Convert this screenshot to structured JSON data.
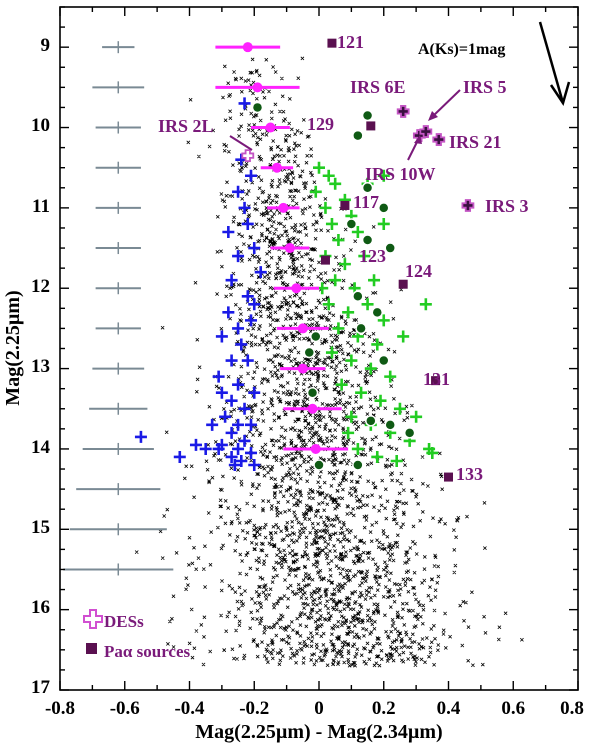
{
  "chart_data": {
    "type": "scatter",
    "xlabel": "Mag(2.25µm) - Mag(2.34µm)",
    "ylabel": "Mag(2.25µm)",
    "xlim": [
      -0.8,
      0.8
    ],
    "ylim": [
      17,
      8.5
    ],
    "x_ticks": [
      "-0.8",
      "-0.6",
      "-0.4",
      "-0.2",
      "0",
      "0.2",
      "0.4",
      "0.6",
      "0.8"
    ],
    "y_ticks": [
      "9",
      "10",
      "11",
      "12",
      "13",
      "14",
      "15",
      "16",
      "17"
    ],
    "error_bars_left": [
      {
        "y": 9.0,
        "xerr": 0.05
      },
      {
        "y": 9.5,
        "xerr": 0.08
      },
      {
        "y": 10.0,
        "xerr": 0.07
      },
      {
        "y": 10.5,
        "xerr": 0.07
      },
      {
        "y": 11.0,
        "xerr": 0.07
      },
      {
        "y": 11.5,
        "xerr": 0.07
      },
      {
        "y": 12.0,
        "xerr": 0.07
      },
      {
        "y": 12.5,
        "xerr": 0.07
      },
      {
        "y": 13.0,
        "xerr": 0.08
      },
      {
        "y": 13.5,
        "xerr": 0.09
      },
      {
        "y": 14.0,
        "xerr": 0.11
      },
      {
        "y": 14.5,
        "xerr": 0.13
      },
      {
        "y": 15.0,
        "xerr": 0.15
      },
      {
        "y": 15.5,
        "xerr": 0.17
      }
    ],
    "ridge_points": [
      {
        "x": -0.22,
        "y": 9.0,
        "xerr": 0.1
      },
      {
        "x": -0.19,
        "y": 9.5,
        "xerr": 0.13
      },
      {
        "x": -0.15,
        "y": 10.0,
        "xerr": 0.06
      },
      {
        "x": -0.13,
        "y": 10.5,
        "xerr": 0.05
      },
      {
        "x": -0.11,
        "y": 11.0,
        "xerr": 0.05
      },
      {
        "x": -0.09,
        "y": 11.5,
        "xerr": 0.06
      },
      {
        "x": -0.07,
        "y": 12.0,
        "xerr": 0.07
      },
      {
        "x": -0.05,
        "y": 12.5,
        "xerr": 0.08
      },
      {
        "x": -0.05,
        "y": 13.0,
        "xerr": 0.07
      },
      {
        "x": -0.02,
        "y": 13.5,
        "xerr": 0.09
      },
      {
        "x": -0.01,
        "y": 14.0,
        "xerr": 0.1
      }
    ],
    "blue_plus": [
      {
        "x": -0.23,
        "y": 9.7
      },
      {
        "x": -0.24,
        "y": 10.4
      },
      {
        "x": -0.21,
        "y": 10.6
      },
      {
        "x": -0.25,
        "y": 10.8
      },
      {
        "x": -0.23,
        "y": 11.0
      },
      {
        "x": -0.28,
        "y": 11.3
      },
      {
        "x": -0.22,
        "y": 11.2
      },
      {
        "x": -0.25,
        "y": 11.6
      },
      {
        "x": -0.2,
        "y": 11.5
      },
      {
        "x": -0.27,
        "y": 11.9
      },
      {
        "x": -0.22,
        "y": 12.1
      },
      {
        "x": -0.28,
        "y": 12.3
      },
      {
        "x": -0.25,
        "y": 12.5
      },
      {
        "x": -0.3,
        "y": 12.6
      },
      {
        "x": -0.21,
        "y": 12.4
      },
      {
        "x": -0.24,
        "y": 12.7
      },
      {
        "x": -0.27,
        "y": 12.9
      },
      {
        "x": -0.31,
        "y": 13.1
      },
      {
        "x": -0.22,
        "y": 12.9
      },
      {
        "x": -0.25,
        "y": 13.2
      },
      {
        "x": -0.2,
        "y": 13.3
      },
      {
        "x": -0.27,
        "y": 13.4
      },
      {
        "x": -0.23,
        "y": 13.5
      },
      {
        "x": -0.29,
        "y": 13.6
      },
      {
        "x": -0.25,
        "y": 13.7
      },
      {
        "x": -0.21,
        "y": 13.7
      },
      {
        "x": -0.27,
        "y": 13.8
      },
      {
        "x": -0.23,
        "y": 13.9
      },
      {
        "x": -0.3,
        "y": 13.95
      },
      {
        "x": -0.25,
        "y": 14.0
      },
      {
        "x": -0.21,
        "y": 14.05
      },
      {
        "x": -0.27,
        "y": 14.1
      },
      {
        "x": -0.24,
        "y": 14.15
      },
      {
        "x": -0.2,
        "y": 14.2
      },
      {
        "x": -0.26,
        "y": 14.2
      },
      {
        "x": -0.31,
        "y": 14.0
      },
      {
        "x": -0.35,
        "y": 14.0
      },
      {
        "x": -0.38,
        "y": 13.95
      },
      {
        "x": -0.43,
        "y": 14.1
      },
      {
        "x": -0.55,
        "y": 13.85
      },
      {
        "x": -0.33,
        "y": 13.7
      },
      {
        "x": -0.3,
        "y": 13.3
      },
      {
        "x": -0.2,
        "y": 12.2
      },
      {
        "x": -0.18,
        "y": 11.8
      }
    ],
    "green_plus": [
      {
        "x": 0.0,
        "y": 10.5
      },
      {
        "x": 0.03,
        "y": 10.6
      },
      {
        "x": -0.01,
        "y": 10.8
      },
      {
        "x": 0.05,
        "y": 10.7
      },
      {
        "x": 0.02,
        "y": 11.0
      },
      {
        "x": 0.08,
        "y": 10.9
      },
      {
        "x": 0.04,
        "y": 11.2
      },
      {
        "x": 0.1,
        "y": 11.1
      },
      {
        "x": 0.06,
        "y": 11.4
      },
      {
        "x": 0.12,
        "y": 11.3
      },
      {
        "x": 0.02,
        "y": 11.6
      },
      {
        "x": 0.08,
        "y": 11.7
      },
      {
        "x": 0.14,
        "y": 11.6
      },
      {
        "x": 0.05,
        "y": 11.9
      },
      {
        "x": 0.11,
        "y": 12.0
      },
      {
        "x": 0.17,
        "y": 11.9
      },
      {
        "x": 0.03,
        "y": 12.2
      },
      {
        "x": 0.09,
        "y": 12.3
      },
      {
        "x": 0.15,
        "y": 12.2
      },
      {
        "x": 0.2,
        "y": 12.4
      },
      {
        "x": 0.06,
        "y": 12.5
      },
      {
        "x": 0.12,
        "y": 12.6
      },
      {
        "x": 0.18,
        "y": 12.7
      },
      {
        "x": 0.04,
        "y": 12.8
      },
      {
        "x": 0.1,
        "y": 12.9
      },
      {
        "x": 0.16,
        "y": 13.0
      },
      {
        "x": 0.22,
        "y": 13.1
      },
      {
        "x": 0.07,
        "y": 13.2
      },
      {
        "x": 0.13,
        "y": 13.3
      },
      {
        "x": 0.19,
        "y": 13.4
      },
      {
        "x": 0.25,
        "y": 13.5
      },
      {
        "x": 0.1,
        "y": 13.6
      },
      {
        "x": 0.16,
        "y": 13.7
      },
      {
        "x": 0.22,
        "y": 13.8
      },
      {
        "x": 0.28,
        "y": 13.9
      },
      {
        "x": 0.12,
        "y": 14.0
      },
      {
        "x": 0.18,
        "y": 14.1
      },
      {
        "x": 0.24,
        "y": 14.15
      },
      {
        "x": 0.34,
        "y": 14.0
      },
      {
        "x": 0.15,
        "y": 10.7
      },
      {
        "x": 0.2,
        "y": 10.6
      },
      {
        "x": 0.33,
        "y": 12.2
      },
      {
        "x": 0.35,
        "y": 14.05
      },
      {
        "x": 0.3,
        "y": 13.6
      },
      {
        "x": 0.2,
        "y": 11.2
      },
      {
        "x": 0.26,
        "y": 12.6
      },
      {
        "x": 0.09,
        "y": 13.8
      },
      {
        "x": 0.01,
        "y": 12.0
      }
    ],
    "green_dots": [
      {
        "x": -0.19,
        "y": 9.75
      },
      {
        "x": 0.15,
        "y": 9.85
      },
      {
        "x": 0.12,
        "y": 10.1
      },
      {
        "x": 0.1,
        "y": 11.2
      },
      {
        "x": 0.15,
        "y": 11.4
      },
      {
        "x": 0.2,
        "y": 11.0
      },
      {
        "x": 0.22,
        "y": 11.5
      },
      {
        "x": 0.18,
        "y": 12.3
      },
      {
        "x": 0.12,
        "y": 12.1
      },
      {
        "x": 0.2,
        "y": 12.9
      },
      {
        "x": 0.13,
        "y": 12.5
      },
      {
        "x": -0.03,
        "y": 12.8
      },
      {
        "x": 0.16,
        "y": 13.65
      },
      {
        "x": 0.22,
        "y": 13.7
      },
      {
        "x": 0.28,
        "y": 13.8
      },
      {
        "x": 0.12,
        "y": 14.2
      },
      {
        "x": -0.02,
        "y": 13.3
      },
      {
        "x": 0.0,
        "y": 14.2
      },
      {
        "x": 0.15,
        "y": 10.75
      },
      {
        "x": -0.01,
        "y": 12.6
      }
    ],
    "pa_alpha_sources": [
      {
        "label": "121",
        "x": 0.04,
        "y": 8.95
      },
      {
        "label": "129",
        "x": 0.16,
        "y": 9.98
      },
      {
        "label": "IRS 6E",
        "x": 0.26,
        "y": 9.8
      },
      {
        "label": "IRS 5",
        "x": 0.31,
        "y": 10.1
      },
      {
        "label": "IRS 10W",
        "x": 0.33,
        "y": 10.05
      },
      {
        "label": "IRS 21",
        "x": 0.37,
        "y": 10.15
      },
      {
        "label": "117",
        "x": 0.08,
        "y": 10.97
      },
      {
        "label": "IRS 3",
        "x": 0.46,
        "y": 10.97
      },
      {
        "label": "123",
        "x": 0.02,
        "y": 11.65
      },
      {
        "label": "124",
        "x": 0.26,
        "y": 11.95
      },
      {
        "label": "131",
        "x": 0.36,
        "y": 13.15
      },
      {
        "label": "133",
        "x": 0.4,
        "y": 14.35
      },
      {
        "label": "IRS 2L",
        "x": -0.22,
        "y": 10.35
      }
    ],
    "des_sources": [
      "IRS 6E",
      "IRS 5",
      "IRS 10W",
      "IRS 21",
      "IRS 3",
      "IRS 2L"
    ],
    "annotations": [
      "121",
      "129",
      "IRS 6E",
      "IRS 5",
      "IRS 2L",
      "IRS 21",
      "IRS 10W",
      "117",
      "IRS 3",
      "123",
      "124",
      "131",
      "133"
    ],
    "reddening_label": "A(Ks)=1mag",
    "legend": [
      {
        "symbol": "open-plus",
        "label": "DESs"
      },
      {
        "symbol": "square",
        "label": "Paα sources"
      }
    ],
    "colors": {
      "blue": "#1a1ae6",
      "green": "#22cc22",
      "magenta": "#ff22ff",
      "purple": "#7a1a7a",
      "dark_green": "#0f5a14",
      "grey": "#7a8a94"
    }
  }
}
